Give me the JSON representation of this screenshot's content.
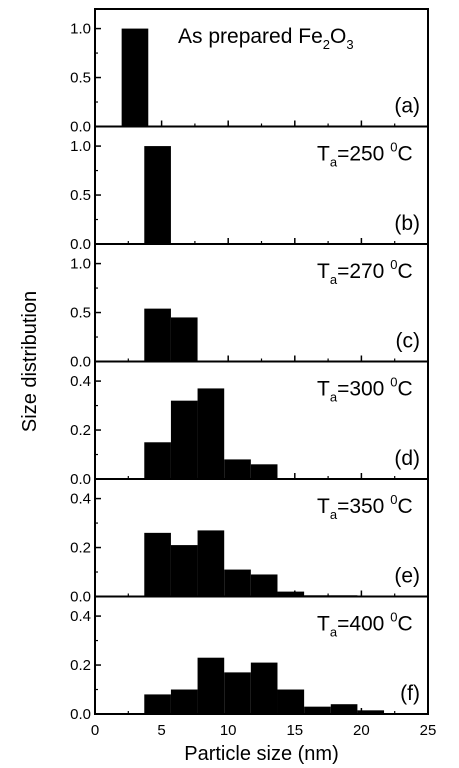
{
  "chart_data": {
    "type": "bar",
    "xlabel": "Particle size (nm)",
    "ylabel": "Size distribution",
    "xlim": [
      0,
      25
    ],
    "xticks": [
      0,
      5,
      10,
      15,
      20,
      25
    ],
    "bar_width": 2,
    "panels": [
      {
        "id": "a",
        "annotation": {
          "main": "As prepared Fe",
          "sub1": "2",
          "mid": "O",
          "sub2": "3"
        },
        "panel_label": "(a)",
        "ylim": [
          0,
          1.2
        ],
        "yticks": [
          "0.0",
          "0.5",
          "1.0"
        ],
        "x": [
          3
        ],
        "values": [
          1.0
        ]
      },
      {
        "id": "b",
        "annotation": {
          "sym": "T",
          "sub": "a",
          "eq": "=250 ",
          "sup": "0",
          "unit": "C"
        },
        "panel_label": "(b)",
        "ylim": [
          0,
          1.2
        ],
        "yticks": [
          "0.0",
          "0.5",
          "1.0"
        ],
        "x": [
          4.7
        ],
        "values": [
          1.0
        ]
      },
      {
        "id": "c",
        "annotation": {
          "sym": "T",
          "sub": "a",
          "eq": "=270 ",
          "sup": "0",
          "unit": "C"
        },
        "panel_label": "(c)",
        "ylim": [
          0,
          1.2
        ],
        "yticks": [
          "0.0",
          "0.5",
          "1.0"
        ],
        "x": [
          4.7,
          6.7
        ],
        "values": [
          0.54,
          0.45
        ]
      },
      {
        "id": "d",
        "annotation": {
          "sym": "T",
          "sub": "a",
          "eq": "=300 ",
          "sup": "0",
          "unit": "C"
        },
        "panel_label": "(d)",
        "ylim": [
          0,
          0.48
        ],
        "yticks": [
          "0.0",
          "0.2",
          "0.4"
        ],
        "x": [
          4.7,
          6.7,
          8.7,
          10.7,
          12.7
        ],
        "values": [
          0.15,
          0.32,
          0.37,
          0.08,
          0.06
        ]
      },
      {
        "id": "e",
        "annotation": {
          "sym": "T",
          "sub": "a",
          "eq": "=350 ",
          "sup": "0",
          "unit": "C"
        },
        "panel_label": "(e)",
        "ylim": [
          0,
          0.48
        ],
        "yticks": [
          "0.0",
          "0.2",
          "0.4"
        ],
        "x": [
          4.7,
          6.7,
          8.7,
          10.7,
          12.7,
          14.7,
          16.7,
          18.7
        ],
        "values": [
          0.26,
          0.21,
          0.27,
          0.11,
          0.09,
          0.02,
          0.005,
          0.005
        ]
      },
      {
        "id": "f",
        "annotation": {
          "sym": "T",
          "sub": "a",
          "eq": "=400 ",
          "sup": "0",
          "unit": "C"
        },
        "panel_label": "(f)",
        "ylim": [
          0,
          0.48
        ],
        "yticks": [
          "0.0",
          "0.2",
          "0.4"
        ],
        "x": [
          4.7,
          6.7,
          8.7,
          10.7,
          12.7,
          14.7,
          16.7,
          18.7,
          20.7
        ],
        "values": [
          0.08,
          0.1,
          0.23,
          0.17,
          0.21,
          0.1,
          0.03,
          0.04,
          0.015
        ]
      }
    ]
  }
}
